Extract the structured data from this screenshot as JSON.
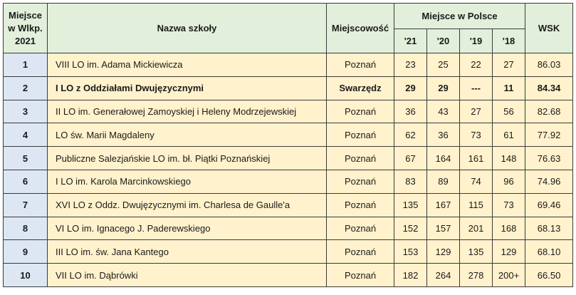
{
  "header": {
    "rank_label": "Miejsce w Wlkp. 2021",
    "name_label": "Nazwa szkoły",
    "city_label": "Miejscowość",
    "poland_group_label": "Miejsce w Polsce",
    "years": [
      "'21",
      "'20",
      "'19",
      "'18"
    ],
    "wsk_label": "WSK"
  },
  "rows": [
    {
      "rank": "1",
      "name": "VIII LO im. Adama Mickiewicza",
      "city": "Poznań",
      "y21": "23",
      "y20": "25",
      "y19": "22",
      "y18": "27",
      "wsk": "86.03"
    },
    {
      "rank": "2",
      "name": "I LO z Oddziałami Dwujęzycznymi",
      "city": "Swarzędz",
      "y21": "29",
      "y20": "29",
      "y19": "---",
      "y18": "11",
      "wsk": "84.34"
    },
    {
      "rank": "3",
      "name": "II LO im. Generałowej Zamoyskiej i Heleny Modrzejewskiej",
      "city": "Poznań",
      "y21": "36",
      "y20": "43",
      "y19": "27",
      "y18": "56",
      "wsk": "82.68"
    },
    {
      "rank": "4",
      "name": "LO św. Marii Magdaleny",
      "city": "Poznań",
      "y21": "62",
      "y20": "36",
      "y19": "73",
      "y18": "61",
      "wsk": "77.92"
    },
    {
      "rank": "5",
      "name": "Publiczne Salezjańskie LO im. bł. Piątki Poznańskiej",
      "city": "Poznań",
      "y21": "67",
      "y20": "164",
      "y19": "161",
      "y18": "148",
      "wsk": "76.63"
    },
    {
      "rank": "6",
      "name": "I LO im. Karola Marcinkowskiego",
      "city": "Poznań",
      "y21": "83",
      "y20": "89",
      "y19": "74",
      "y18": "96",
      "wsk": "74.96"
    },
    {
      "rank": "7",
      "name": "XVI LO z Oddz. Dwujęzycznymi im. Charlesa de Gaulle'a",
      "city": "Poznań",
      "y21": "135",
      "y20": "167",
      "y19": "115",
      "y18": "73",
      "wsk": "69.46"
    },
    {
      "rank": "8",
      "name": "VI LO im. Ignacego J. Paderewskiego",
      "city": "Poznań",
      "y21": "152",
      "y20": "157",
      "y19": "201",
      "y18": "168",
      "wsk": "68.13"
    },
    {
      "rank": "9",
      "name": "III LO im. św. Jana Kantego",
      "city": "Poznań",
      "y21": "153",
      "y20": "129",
      "y19": "135",
      "y18": "129",
      "wsk": "68.10"
    },
    {
      "rank": "10",
      "name": "VII LO im. Dąbrówki",
      "city": "Poznań",
      "y21": "182",
      "y20": "264",
      "y19": "278",
      "y18": "200+",
      "wsk": "66.50"
    }
  ]
}
